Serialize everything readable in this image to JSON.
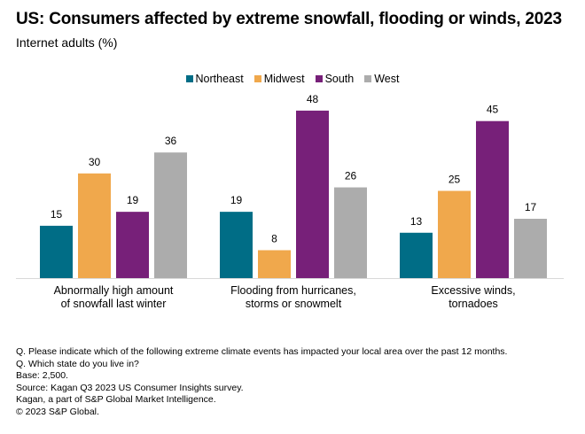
{
  "title": "US: Consumers affected by extreme snowfall, flooding or winds, 2023",
  "subtitle": "Internet adults (%)",
  "footer": [
    "Q. Please indicate which of the following extreme climate events has impacted your local area over the past 12 months.",
    "Q. Which state do you live in?",
    "Base: 2,500.",
    "Source: Kagan Q3 2023 US Consumer Insights survey.",
    "Kagan, a part of S&P Global Market Intelligence.",
    "© 2023 S&P Global."
  ],
  "chart_data": {
    "type": "bar",
    "title": "US: Consumers affected by extreme snowfall, flooding or winds, 2023",
    "subtitle": "Internet adults (%)",
    "xlabel": "",
    "ylabel": "",
    "ylim": [
      0,
      50
    ],
    "grid": false,
    "legend_position": "top-center",
    "categories": [
      [
        "Abnormally high amount",
        "of snowfall last winter"
      ],
      [
        "Flooding from hurricanes,",
        "storms or snowmelt"
      ],
      [
        "Excessive winds,",
        "tornadoes"
      ]
    ],
    "series": [
      {
        "name": "Northeast",
        "color": "#006d86",
        "values": [
          15,
          19,
          13
        ]
      },
      {
        "name": "Midwest",
        "color": "#f0a84c",
        "values": [
          30,
          8,
          25
        ]
      },
      {
        "name": "South",
        "color": "#772079",
        "values": [
          19,
          48,
          45
        ]
      },
      {
        "name": "West",
        "color": "#acacac",
        "values": [
          36,
          26,
          17
        ]
      }
    ]
  }
}
